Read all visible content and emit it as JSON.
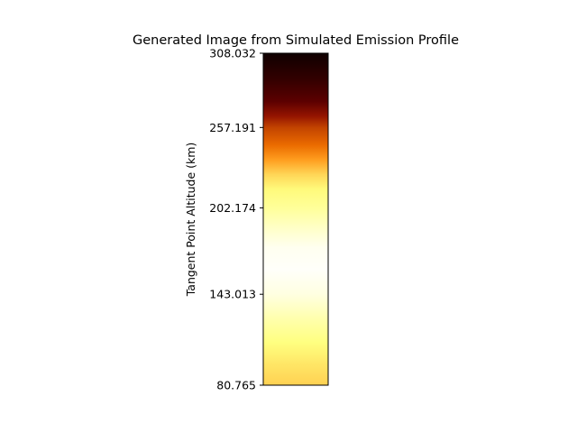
{
  "chart_data": {
    "type": "heatmap",
    "title": "Generated Image from Simulated Emission Profile",
    "ylabel": "Tangent Point Altitude (km)",
    "xlabel": "",
    "ylim": [
      80.765,
      308.032
    ],
    "y_ticks": [
      "308.032",
      "257.191",
      "202.174",
      "143.013",
      "80.765"
    ],
    "colormap": "afmhot",
    "colormap_stops": [
      "#000000",
      "#800000",
      "#ff8000",
      "#ffff80",
      "#ffffff"
    ],
    "profile": {
      "altitude_km": [
        80.765,
        95,
        110,
        125,
        143.013,
        160,
        175,
        190,
        202.174,
        215,
        225,
        235,
        245,
        257.191,
        265,
        275,
        290,
        308.032
      ],
      "normalized_intensity": [
        0.66,
        0.7,
        0.75,
        0.83,
        0.94,
        0.99,
        0.97,
        0.88,
        0.8,
        0.74,
        0.67,
        0.56,
        0.46,
        0.38,
        0.29,
        0.18,
        0.1,
        0.03
      ]
    }
  }
}
